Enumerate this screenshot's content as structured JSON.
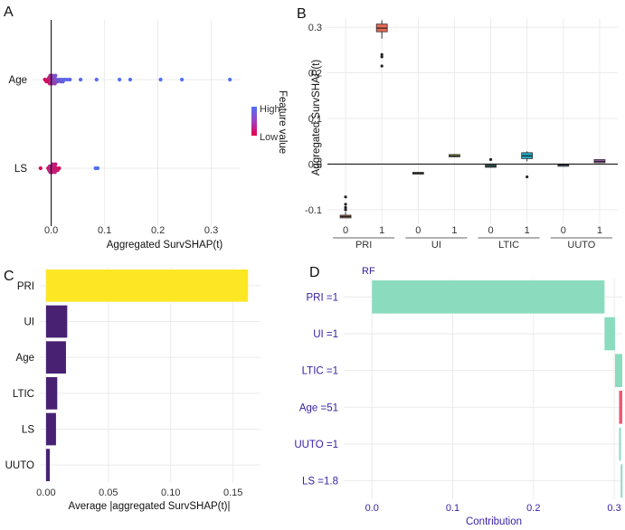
{
  "figure": {
    "colors": {
      "background": "#ffffff",
      "grid": "#ebebeb",
      "zero_line": "#000000",
      "viridis_yellow": "#fde725",
      "viridis_purple": "#482173",
      "breakdown_positive": "#8bdcbe",
      "breakdown_negative": "#f05a71",
      "breakdown_text": "#371ea3"
    }
  },
  "chart_data": [
    {
      "panel": "A",
      "type": "scatter",
      "subtype": "beeswarm",
      "xlabel": "Aggregated SurvSHAP(t)",
      "ylabel": "",
      "xlim": [
        -0.035,
        0.355
      ],
      "xticks": [
        0.0,
        0.1,
        0.2,
        0.3
      ],
      "xtick_labels": [
        "0.0",
        "0.1",
        "0.2",
        "0.3"
      ],
      "categories": [
        "Age",
        "LS"
      ],
      "legend": {
        "title": "Feature value",
        "high_label": "High",
        "low_label": "Low",
        "low_color": "#e8004b",
        "high_color": "#4f6ff5",
        "position": "right"
      },
      "series": [
        {
          "name": "Age",
          "x": [
            -0.012,
            -0.009,
            -0.007,
            -0.005,
            -0.004,
            -0.003,
            -0.002,
            -0.001,
            0.0,
            0.001,
            0.002,
            0.003,
            0.004,
            0.005,
            0.006,
            0.007,
            0.008,
            0.01,
            0.012,
            0.015,
            0.018,
            0.02,
            0.022,
            0.025,
            0.03,
            0.035,
            0.055,
            0.085,
            0.128,
            0.148,
            0.205,
            0.245,
            0.335
          ],
          "feature_value": [
            0.1,
            0.15,
            0.2,
            0.1,
            0.3,
            0.25,
            0.4,
            0.35,
            0.45,
            0.5,
            0.55,
            0.6,
            0.5,
            0.65,
            0.7,
            0.6,
            0.75,
            0.8,
            0.7,
            0.85,
            0.8,
            0.9,
            0.85,
            0.9,
            0.95,
            0.9,
            0.95,
            0.95,
            1.0,
            1.0,
            1.0,
            1.0,
            1.0
          ]
        },
        {
          "name": "LS",
          "x": [
            -0.02,
            -0.006,
            -0.004,
            -0.003,
            -0.002,
            -0.001,
            0.0,
            0.001,
            0.002,
            0.003,
            0.004,
            0.005,
            0.006,
            0.007,
            0.008,
            0.01,
            0.012,
            0.015,
            0.083,
            0.087
          ],
          "feature_value": [
            0.05,
            0.2,
            0.25,
            0.3,
            0.35,
            0.4,
            0.3,
            0.35,
            0.25,
            0.4,
            0.3,
            0.2,
            0.25,
            0.3,
            0.2,
            0.15,
            0.2,
            0.15,
            1.0,
            1.0
          ]
        }
      ]
    },
    {
      "panel": "B",
      "type": "boxplot",
      "ylabel": "Aggregated SurvSHAP(t)",
      "xlabel": "",
      "ylim": [
        -0.13,
        0.32
      ],
      "yticks": [
        -0.1,
        0.0,
        0.1,
        0.2,
        0.3
      ],
      "ytick_labels": [
        "-0.1",
        "0.0",
        "0.1",
        "0.2",
        "0.3"
      ],
      "groups": [
        "PRI",
        "UI",
        "LTIC",
        "UUTO"
      ],
      "boxes": [
        {
          "group": "PRI",
          "level": "0",
          "q1": -0.118,
          "median": -0.115,
          "q3": -0.112,
          "whisker_low": -0.118,
          "whisker_high": -0.105,
          "outliers": [
            -0.072,
            -0.088,
            -0.095,
            -0.1
          ],
          "color": "#a0654a"
        },
        {
          "group": "PRI",
          "level": "1",
          "q1": 0.29,
          "median": 0.298,
          "q3": 0.307,
          "whisker_low": 0.275,
          "whisker_high": 0.315,
          "outliers": [
            0.215,
            0.235,
            0.24
          ],
          "color": "#e56a55"
        },
        {
          "group": "UI",
          "level": "0",
          "q1": -0.022,
          "median": -0.02,
          "q3": -0.018,
          "whisker_low": -0.022,
          "whisker_high": -0.018,
          "outliers": [],
          "color": "#7f8a3c"
        },
        {
          "group": "UI",
          "level": "1",
          "q1": 0.016,
          "median": 0.018,
          "q3": 0.021,
          "whisker_low": 0.015,
          "whisker_high": 0.022,
          "outliers": [],
          "color": "#a3b52d"
        },
        {
          "group": "LTIC",
          "level": "0",
          "q1": -0.007,
          "median": -0.005,
          "q3": -0.002,
          "whisker_low": -0.008,
          "whisker_high": 0.0,
          "outliers": [
            0.01
          ],
          "color": "#2a9e8c"
        },
        {
          "group": "LTIC",
          "level": "1",
          "q1": 0.012,
          "median": 0.018,
          "q3": 0.025,
          "whisker_low": 0.006,
          "whisker_high": 0.028,
          "outliers": [
            -0.028
          ],
          "color": "#1fa8c4"
        },
        {
          "group": "UUTO",
          "level": "0",
          "q1": -0.003,
          "median": -0.002,
          "q3": -0.001,
          "whisker_low": -0.003,
          "whisker_high": -0.001,
          "outliers": [],
          "color": "#5a7ab0"
        },
        {
          "group": "UUTO",
          "level": "1",
          "q1": 0.003,
          "median": 0.006,
          "q3": 0.01,
          "whisker_low": 0.003,
          "whisker_high": 0.01,
          "outliers": [],
          "color": "#b767c4"
        }
      ]
    },
    {
      "panel": "C",
      "type": "bar",
      "orientation": "horizontal",
      "xlabel": "Average |aggregated SurvSHAP(t)|",
      "ylabel": "",
      "xlim": [
        -0.005,
        0.172
      ],
      "xticks": [
        0.0,
        0.05,
        0.1,
        0.15
      ],
      "xtick_labels": [
        "0.00",
        "0.05",
        "0.10",
        "0.15"
      ],
      "categories": [
        "PRI",
        "UI",
        "Age",
        "LTIC",
        "LS",
        "UUTO"
      ],
      "values": [
        0.162,
        0.017,
        0.016,
        0.009,
        0.008,
        0.003
      ]
    },
    {
      "panel": "D",
      "type": "bar",
      "subtype": "breakdown",
      "orientation": "horizontal",
      "title": "RF",
      "xlabel": "Contribution",
      "ylabel": "",
      "xlim": [
        -0.035,
        0.31
      ],
      "xticks": [
        0.0,
        0.1,
        0.2,
        0.3
      ],
      "xtick_labels": [
        "0.0",
        "0.1",
        "0.2",
        "0.3"
      ],
      "categories": [
        "PRI =1",
        "UI =1",
        "LTIC =1",
        "Age =51",
        "UUTO =1",
        "LS =1.8"
      ],
      "values": [
        0.288,
        0.013,
        0.009,
        -0.004,
        0.002,
        0.001
      ]
    }
  ]
}
